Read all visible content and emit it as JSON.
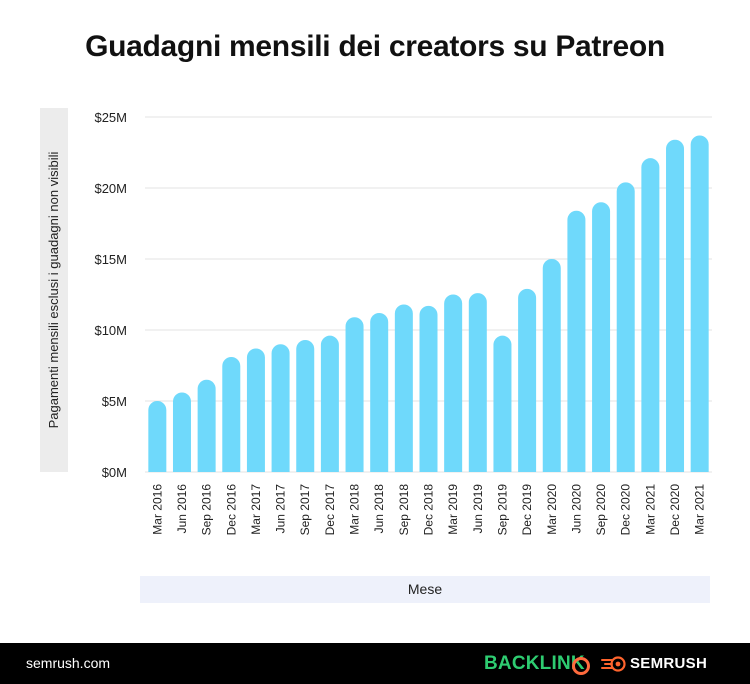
{
  "chart_data": {
    "type": "bar",
    "title": "Guadagni mensili dei creators su Patreon",
    "xlabel": "Mese",
    "ylabel": "Pagamenti mensili esclusi i guadagni non visibili",
    "categories": [
      "Mar 2016",
      "Jun 2016",
      "Sep 2016",
      "Dec 2016",
      "Mar 2017",
      "Jun 2017",
      "Sep 2017",
      "Dec 2017",
      "Mar 2018",
      "Jun 2018",
      "Sep 2018",
      "Dec 2018",
      "Mar 2019",
      "Jun 2019",
      "Sep 2019",
      "Dec 2019",
      "Mar 2020",
      "Jun 2020",
      "Sep 2020",
      "Dec 2020",
      "Mar 2021",
      "Dec 2020",
      "Mar 2021"
    ],
    "values": [
      5.0,
      5.6,
      6.5,
      8.1,
      8.7,
      9.0,
      9.3,
      9.6,
      10.9,
      11.2,
      11.8,
      11.7,
      12.5,
      12.6,
      9.6,
      12.9,
      15.0,
      18.4,
      19.0,
      20.4,
      22.1,
      23.4,
      23.7
    ],
    "value_unit": "M USD",
    "yticks": [
      "$0M",
      "$5M",
      "$10M",
      "$15M",
      "$20M",
      "$25M"
    ],
    "ytick_values": [
      0,
      5,
      10,
      15,
      20,
      25
    ],
    "ylim": [
      0,
      25
    ],
    "grid": true,
    "bar_color": "#6fd9fb"
  },
  "footer": {
    "site": "semrush.com",
    "brand1": "BACKLINK",
    "brand2": "SEMRUSH"
  }
}
